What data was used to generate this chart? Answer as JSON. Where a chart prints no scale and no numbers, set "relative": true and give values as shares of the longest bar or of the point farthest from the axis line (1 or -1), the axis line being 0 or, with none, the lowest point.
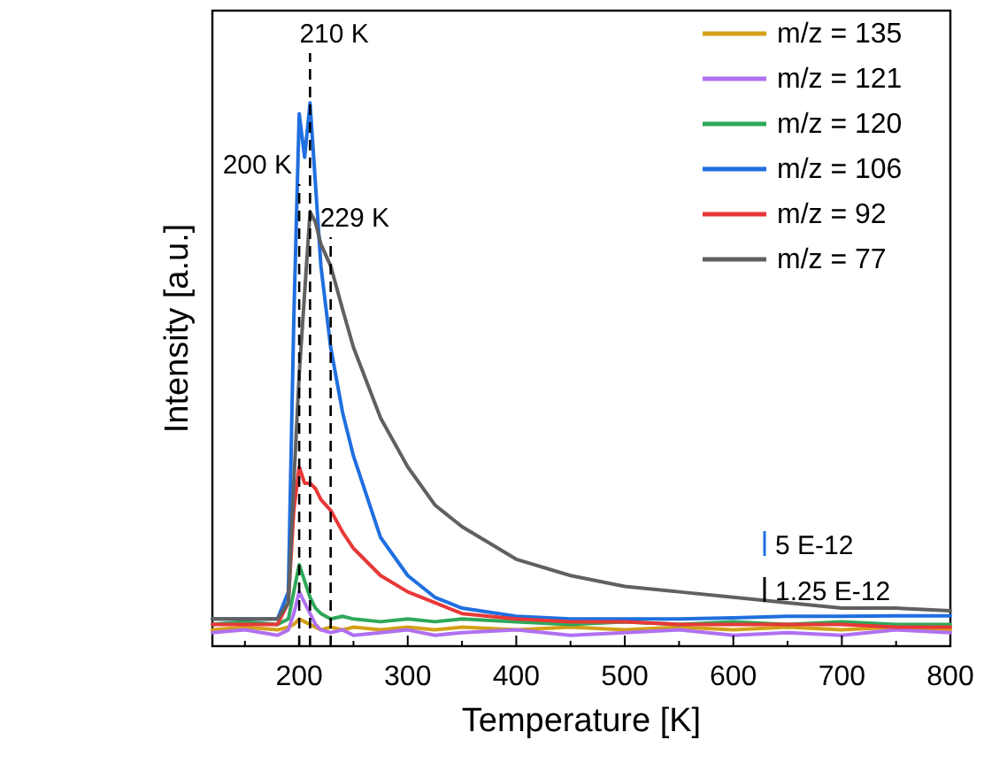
{
  "chart_data": {
    "type": "line",
    "xlabel": "Temperature [K]",
    "ylabel": "Intensity [a.u.]",
    "relative": true,
    "xlim": [
      120,
      800
    ],
    "xticks": [
      200,
      300,
      400,
      500,
      600,
      700,
      800
    ],
    "legend": "top right",
    "line_style": "solid",
    "x": [
      120,
      150,
      180,
      190,
      195,
      200,
      205,
      210,
      215,
      220,
      229,
      240,
      250,
      275,
      300,
      325,
      350,
      400,
      450,
      500,
      550,
      600,
      650,
      700,
      750,
      800
    ],
    "series": [
      {
        "name": "m/z = 135",
        "color": "#d4a017",
        "values": [
          0.03,
          0.035,
          0.03,
          0.035,
          0.04,
          0.05,
          0.045,
          0.04,
          0.035,
          0.03,
          0.035,
          0.03,
          0.035,
          0.03,
          0.035,
          0.03,
          0.035,
          0.03,
          0.035,
          0.03,
          0.035,
          0.03,
          0.035,
          0.03,
          0.035,
          0.03
        ]
      },
      {
        "name": "m/z = 121",
        "color": "#b070f0",
        "values": [
          0.025,
          0.03,
          0.02,
          0.03,
          0.06,
          0.1,
          0.08,
          0.06,
          0.04,
          0.03,
          0.025,
          0.03,
          0.02,
          0.025,
          0.03,
          0.02,
          0.025,
          0.03,
          0.02,
          0.025,
          0.03,
          0.02,
          0.025,
          0.02,
          0.03,
          0.025
        ]
      },
      {
        "name": "m/z = 120",
        "color": "#2ea85a",
        "values": [
          0.04,
          0.045,
          0.04,
          0.05,
          0.1,
          0.15,
          0.12,
          0.09,
          0.07,
          0.06,
          0.05,
          0.055,
          0.05,
          0.045,
          0.05,
          0.045,
          0.05,
          0.045,
          0.04,
          0.045,
          0.04,
          0.045,
          0.04,
          0.045,
          0.04,
          0.04
        ]
      },
      {
        "name": "m/z = 106",
        "color": "#1f6fe0",
        "values": [
          0.05,
          0.05,
          0.05,
          0.1,
          0.6,
          0.98,
          0.9,
          1.0,
          0.85,
          0.7,
          0.55,
          0.43,
          0.35,
          0.2,
          0.13,
          0.09,
          0.07,
          0.055,
          0.05,
          0.05,
          0.05,
          0.052,
          0.055,
          0.055,
          0.056,
          0.056
        ]
      },
      {
        "name": "m/z = 92",
        "color": "#e83838",
        "values": [
          0.04,
          0.04,
          0.04,
          0.08,
          0.25,
          0.33,
          0.3,
          0.3,
          0.29,
          0.27,
          0.25,
          0.21,
          0.18,
          0.13,
          0.1,
          0.08,
          0.06,
          0.05,
          0.045,
          0.045,
          0.04,
          0.04,
          0.04,
          0.04,
          0.035,
          0.035
        ]
      },
      {
        "name": "m/z = 77",
        "color": "#606060",
        "values": [
          0.05,
          0.05,
          0.05,
          0.08,
          0.3,
          0.5,
          0.65,
          0.8,
          0.78,
          0.74,
          0.7,
          0.62,
          0.55,
          0.42,
          0.33,
          0.26,
          0.22,
          0.16,
          0.13,
          0.11,
          0.1,
          0.09,
          0.08,
          0.07,
          0.07,
          0.065
        ]
      }
    ],
    "ref_lines": [
      {
        "axis": "x",
        "value": 200,
        "label": "200 K",
        "color": "#000000",
        "line_style": "dashed"
      },
      {
        "axis": "x",
        "value": 210,
        "label": "210 K",
        "color": "#000000",
        "line_style": "dashed"
      },
      {
        "axis": "x",
        "value": 229,
        "label": "229 K",
        "color": "#000000",
        "line_style": "dashed"
      }
    ],
    "annotations": [
      "5 E-12",
      "1.25 E-12"
    ]
  }
}
